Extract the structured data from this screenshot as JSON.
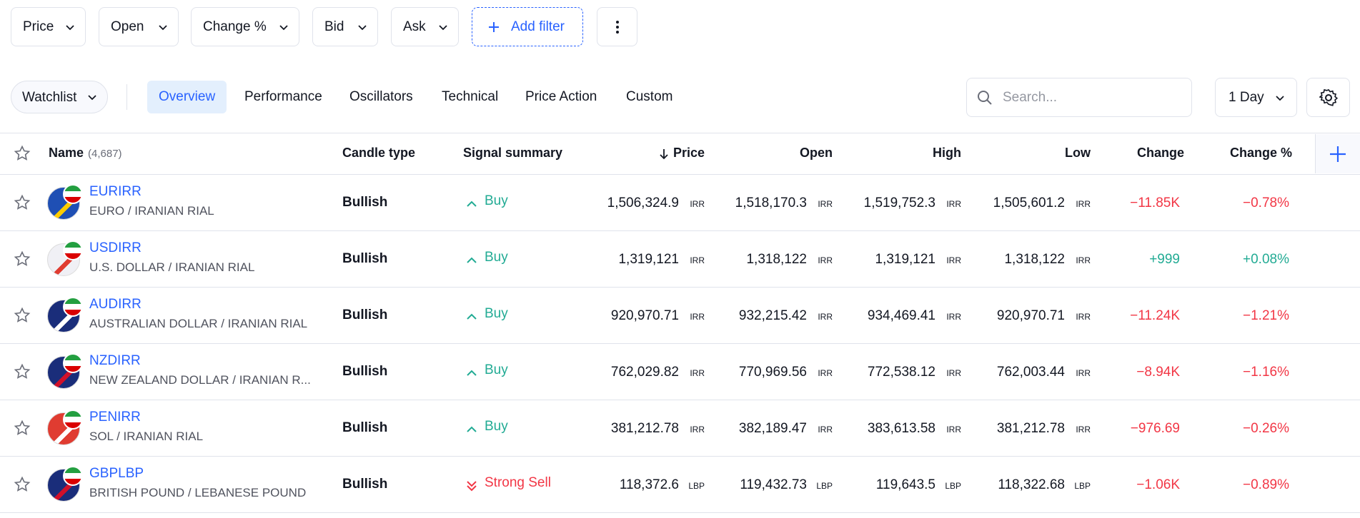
{
  "filters": {
    "items": [
      "Price",
      "Open",
      "Change %",
      "Bid",
      "Ask"
    ],
    "add": "Add filter"
  },
  "toolbar": {
    "watchlist": "Watchlist",
    "tabs": [
      "Overview",
      "Performance",
      "Oscillators",
      "Technical",
      "Price Action",
      "Custom"
    ],
    "search": "Search...",
    "interval": "1 Day"
  },
  "table": {
    "header": {
      "name": "Name",
      "count": "(4,687)",
      "candle": "Candle type",
      "signal": "Signal summary",
      "price": "Price",
      "open": "Open",
      "high": "High",
      "low": "Low",
      "change": "Change",
      "change_pct": "Change %"
    },
    "rows": [
      {
        "symbol": "EURIRR",
        "description": "EURO / IRANIAN RIAL",
        "candle": "Bullish",
        "signal": {
          "text": "Buy",
          "color": "#22ab94"
        },
        "price": {
          "value": "1,506,324.9",
          "unit": "IRR"
        },
        "open": {
          "value": "1,518,170.3",
          "unit": "IRR"
        },
        "high": {
          "value": "1,519,752.3",
          "unit": "IRR"
        },
        "low": {
          "value": "1,505,601.2",
          "unit": "IRR"
        },
        "change": "−11.85K",
        "change_pct": "−0.78%"
      },
      {
        "symbol": "USDIRR",
        "description": "U.S. DOLLAR / IRANIAN RIAL",
        "candle": "Bullish",
        "signal": {
          "text": "Buy",
          "color": "#22ab94"
        },
        "price": {
          "value": "1,319,121",
          "unit": "IRR"
        },
        "open": {
          "value": "1,318,122",
          "unit": "IRR"
        },
        "high": {
          "value": "1,319,121",
          "unit": "IRR"
        },
        "low": {
          "value": "1,318,122",
          "unit": "IRR"
        },
        "change": "+999",
        "change_pct": "+0.08%"
      },
      {
        "symbol": "AUDIRR",
        "description": "AUSTRALIAN DOLLAR / IRANIAN RIAL",
        "candle": "Bullish",
        "signal": {
          "text": "Buy",
          "color": "#22ab94"
        },
        "price": {
          "value": "920,970.71",
          "unit": "IRR"
        },
        "open": {
          "value": "932,215.42",
          "unit": "IRR"
        },
        "high": {
          "value": "934,469.41",
          "unit": "IRR"
        },
        "low": {
          "value": "920,970.71",
          "unit": "IRR"
        },
        "change": "−11.24K",
        "change_pct": "−1.21%"
      },
      {
        "symbol": "NZDIRR",
        "description": "NEW ZEALAND DOLLAR / IRANIAN R...",
        "candle": "Bullish",
        "signal": {
          "text": "Buy",
          "color": "#22ab94"
        },
        "price": {
          "value": "762,029.82",
          "unit": "IRR"
        },
        "open": {
          "value": "770,969.56",
          "unit": "IRR"
        },
        "high": {
          "value": "772,538.12",
          "unit": "IRR"
        },
        "low": {
          "value": "762,003.44",
          "unit": "IRR"
        },
        "change": "−8.94K",
        "change_pct": "−1.16%"
      },
      {
        "symbol": "PENIRR",
        "description": "SOL / IRANIAN RIAL",
        "candle": "Bullish",
        "signal": {
          "text": "Buy",
          "color": "#22ab94"
        },
        "price": {
          "value": "381,212.78",
          "unit": "IRR"
        },
        "open": {
          "value": "382,189.47",
          "unit": "IRR"
        },
        "high": {
          "value": "383,613.58",
          "unit": "IRR"
        },
        "low": {
          "value": "381,212.78",
          "unit": "IRR"
        },
        "change": "−976.69",
        "change_pct": "−0.26%"
      },
      {
        "symbol": "GBPLBP",
        "description": "BRITISH POUND / LEBANESE POUND",
        "candle": "Bullish",
        "signal": {
          "text": "Strong Sell",
          "color": "#f23645"
        },
        "price": {
          "value": "118,372.6",
          "unit": "LBP"
        },
        "open": {
          "value": "119,432.73",
          "unit": "LBP"
        },
        "high": {
          "value": "119,643.5",
          "unit": "LBP"
        },
        "low": {
          "value": "118,322.68",
          "unit": "LBP"
        },
        "change": "−1.06K",
        "change_pct": "−0.89%"
      }
    ]
  }
}
